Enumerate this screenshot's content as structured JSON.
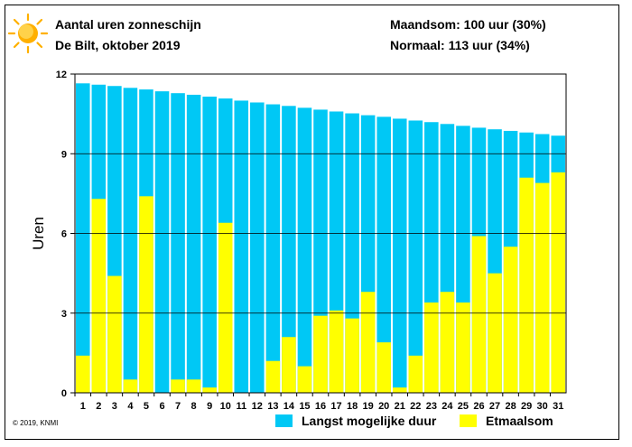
{
  "header": {
    "title": "Aantal uren zonneschijn",
    "subtitle": "De Bilt, oktober 2019",
    "month_total": "Maandsom: 100 uur (30%)",
    "normal": "Normaal: 113 uur (34%)"
  },
  "icon": "sun-icon",
  "copyright": "© 2019, KNMI",
  "colors": {
    "possible": "#00c8f5",
    "actual": "#ffff00",
    "grid": "#000000"
  },
  "chart_data": {
    "type": "bar",
    "ylabel": "Uren",
    "ylim": [
      0,
      12
    ],
    "yticks": [
      0,
      3,
      6,
      9,
      12
    ],
    "grid": true,
    "legend_position": "bottom",
    "categories": [
      "1",
      "2",
      "3",
      "4",
      "5",
      "6",
      "7",
      "8",
      "9",
      "10",
      "11",
      "12",
      "13",
      "14",
      "15",
      "16",
      "17",
      "18",
      "19",
      "20",
      "21",
      "22",
      "23",
      "24",
      "25",
      "26",
      "27",
      "28",
      "29",
      "30",
      "31"
    ],
    "series": [
      {
        "name": "Langst mogelijke duur",
        "values": [
          11.65,
          11.6,
          11.55,
          11.48,
          11.42,
          11.35,
          11.28,
          11.22,
          11.15,
          11.08,
          11.0,
          10.93,
          10.86,
          10.8,
          10.73,
          10.66,
          10.59,
          10.52,
          10.45,
          10.39,
          10.32,
          10.25,
          10.19,
          10.12,
          10.05,
          9.98,
          9.92,
          9.86,
          9.8,
          9.74,
          9.68
        ]
      },
      {
        "name": "Etmaalsom",
        "values": [
          1.4,
          7.3,
          4.4,
          0.5,
          7.4,
          0.0,
          0.5,
          0.5,
          0.2,
          6.4,
          0.0,
          0.0,
          1.2,
          2.1,
          1.0,
          2.9,
          3.1,
          2.8,
          3.8,
          1.9,
          0.2,
          1.4,
          3.4,
          3.8,
          3.4,
          5.9,
          4.5,
          5.5,
          8.1,
          7.9,
          8.3
        ]
      }
    ]
  }
}
